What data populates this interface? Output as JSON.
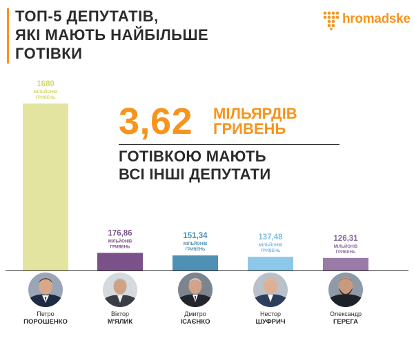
{
  "title": {
    "lines": [
      "ТОП-5 ДЕПУТАТІВ,",
      "ЯКІ МАЮТЬ НАЙБІЛЬШЕ",
      "ГОТІВКИ"
    ]
  },
  "logo": {
    "text": "hromadske",
    "color": "#f7941d",
    "icon": "hromadske-dots-logo"
  },
  "highlight": {
    "value": "3,62",
    "unit_line1": "МІЛЬЯРДІВ",
    "unit_line2": "ГРИВЕНЬ",
    "caption_line1": "ГОТІВКОЮ МАЮТЬ",
    "caption_line2": "ВСІ ІНШІ ДЕПУТАТИ",
    "color": "#f7941d"
  },
  "chart_data": {
    "type": "bar",
    "categories": [
      "Петро ПОРОШЕНКО",
      "Віктор М'ЯЛИК",
      "Дмитро ІСАЄНКО",
      "Нестор ШУФРИЧ",
      "Олександр ГЕРЕГА"
    ],
    "values": [
      1680,
      176.86,
      151.34,
      137.48,
      126.31
    ],
    "value_labels": [
      "1680",
      "176,86",
      "151,34",
      "137,48",
      "126,31"
    ],
    "unit_line1": "МІЛЬЙОНІВ",
    "unit_line2": "ГРИВЕНЬ",
    "colors": [
      "#e3e4a0",
      "#7a5289",
      "#4f91b4",
      "#8dc7ea",
      "#9a7aa6"
    ],
    "label_colors": [
      "#d7d66a",
      "#7a5289",
      "#4f91b4",
      "#7bbde4",
      "#8c6c99"
    ],
    "ylim": [
      0,
      1680
    ],
    "grid": false,
    "title": "",
    "xlabel": "",
    "ylabel": ""
  },
  "people": [
    {
      "first": "Петро",
      "last": "ПОРОШЕНКО",
      "icon": "portrait-poroshenko"
    },
    {
      "first": "Віктор",
      "last": "М'ЯЛИК",
      "icon": "portrait-myalyk"
    },
    {
      "first": "Дмитро",
      "last": "ІСАЄНКО",
      "icon": "portrait-isaenko"
    },
    {
      "first": "Нестор",
      "last": "ШУФРИЧ",
      "icon": "portrait-shufrych"
    },
    {
      "first": "Олександр",
      "last": "ГЕРЕГА",
      "icon": "portrait-gerega"
    }
  ]
}
